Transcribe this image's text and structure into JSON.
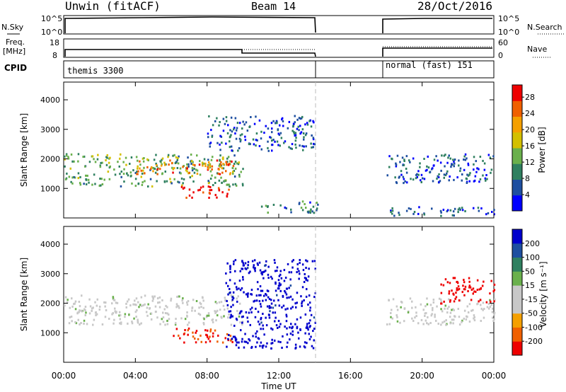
{
  "header": {
    "radar": "Unwin (fitACF)",
    "beam": "Beam 14",
    "date": "28/Oct/2016"
  },
  "nsky_panel": {
    "label": "N.Sky",
    "left_ticks": [
      "10^5",
      "10^0"
    ],
    "right_ticks": [
      "10^5",
      "10^0"
    ],
    "right_label": "N.Search"
  },
  "freq_panel": {
    "label_line1": "Freq.",
    "label_line2": "[MHz]",
    "left_ticks": [
      "18",
      "8"
    ],
    "right_ticks": [
      "60",
      "0"
    ],
    "right_label": "Nave"
  },
  "cpid_panel": {
    "label": "CPID",
    "segments": [
      "themis 3300",
      "normal (fast) 151"
    ]
  },
  "colors": {
    "power_scale": [
      "#0000ff",
      "#1e4fa0",
      "#2f8060",
      "#6ab04c",
      "#d4c000",
      "#f5a000",
      "#f06000",
      "#ee0000"
    ],
    "velocity_scale": [
      "#ee0000",
      "#f06000",
      "#f5a000",
      "#c8c8c8",
      "#c8c8c8",
      "#6ab04c",
      "#2f8060",
      "#1e4fa0",
      "#0000cc"
    ],
    "gray_median": "#c0c0c0"
  },
  "chart_data": [
    {
      "type": "heatmap",
      "name": "power",
      "ylabel": "Slant Range [km]",
      "yticks": [
        "1000",
        "2000",
        "3000",
        "4000"
      ],
      "ylim": [
        0,
        4600
      ],
      "xlim": [
        "00:00",
        "24:00"
      ],
      "colorbar": {
        "label": "Power [dB]",
        "ticks": [
          "4",
          "8",
          "12",
          "16",
          "20",
          "24",
          "28"
        ],
        "range": [
          0,
          31
        ]
      },
      "features": [
        {
          "start_ut": 0.0,
          "end_ut": 10.0,
          "range_km": [
            1100,
            2200
          ],
          "value": 12
        },
        {
          "start_ut": 4.0,
          "end_ut": 9.5,
          "range_km": [
            1500,
            2000
          ],
          "value": 24
        },
        {
          "start_ut": 6.5,
          "end_ut": 9.5,
          "range_km": [
            700,
            1100
          ],
          "value": 30
        },
        {
          "start_ut": 8.0,
          "end_ut": 14.0,
          "range_km": [
            2300,
            3500
          ],
          "value": 6
        },
        {
          "start_ut": 11.0,
          "end_ut": 14.2,
          "range_km": [
            200,
            600
          ],
          "value": 8
        },
        {
          "start_ut": 18.0,
          "end_ut": 24.0,
          "range_km": [
            1200,
            2200
          ],
          "value": 6
        },
        {
          "start_ut": 18.0,
          "end_ut": 24.0,
          "range_km": [
            100,
            400
          ],
          "value": 6
        }
      ]
    },
    {
      "type": "heatmap",
      "name": "velocity",
      "ylabel": "Slant Range [km]",
      "yticks": [
        "1000",
        "2000",
        "3000",
        "4000"
      ],
      "ylim": [
        0,
        4600
      ],
      "xlabel": "Time UT",
      "xticks": [
        "00:00",
        "04:00",
        "08:00",
        "12:00",
        "16:00",
        "20:00",
        "00:00"
      ],
      "xlim": [
        "00:00",
        "24:00"
      ],
      "colorbar": {
        "label": "Velocity [m s⁻¹]",
        "ticks": [
          "200",
          "100",
          "50",
          "15",
          "-15",
          "-50",
          "-100",
          "-200"
        ]
      },
      "features": [
        {
          "start_ut": 0.0,
          "end_ut": 10.0,
          "range_km": [
            1300,
            2300
          ],
          "value": 0
        },
        {
          "start_ut": 6.0,
          "end_ut": 9.5,
          "range_km": [
            700,
            1200
          ],
          "value": -180
        },
        {
          "start_ut": 9.0,
          "end_ut": 14.0,
          "range_km": [
            500,
            3500
          ],
          "value": 200
        },
        {
          "start_ut": 18.0,
          "end_ut": 24.0,
          "range_km": [
            1300,
            2200
          ],
          "value": 0
        },
        {
          "start_ut": 21.0,
          "end_ut": 24.0,
          "range_km": [
            2000,
            2900
          ],
          "value": -200
        }
      ]
    }
  ]
}
